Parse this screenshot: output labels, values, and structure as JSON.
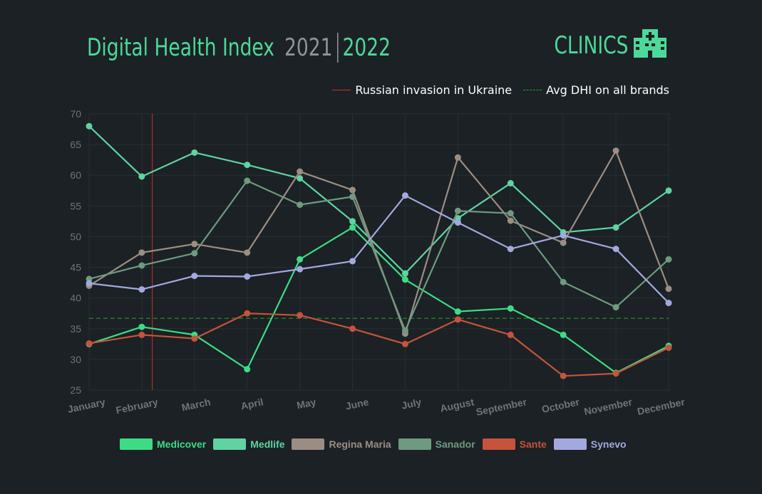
{
  "header": {
    "title": "Digital Health Index",
    "year1": "2021",
    "year2": "2022",
    "category": "CLINICS",
    "icon": "hospital-icon",
    "accent": "#4cd99a"
  },
  "top_legend": [
    {
      "label": "Russian invasion in Ukraine",
      "color": "#c9322c",
      "style": "solid"
    },
    {
      "label": "Avg DHI on all brands",
      "color": "#29a329",
      "style": "dashed"
    }
  ],
  "chart_data": {
    "type": "line",
    "categories": [
      "January",
      "February",
      "March",
      "April",
      "May",
      "June",
      "July",
      "August",
      "September",
      "October",
      "November",
      "December"
    ],
    "ylim": [
      25,
      70
    ],
    "yticks": [
      25,
      30,
      35,
      40,
      45,
      50,
      55,
      60,
      65,
      70
    ],
    "grid": true,
    "legend": "bottom",
    "series": [
      {
        "name": "Medicover",
        "color": "#3ddc84",
        "values": [
          32.5,
          35.3,
          34.0,
          28.4,
          46.3,
          51.5,
          43.0,
          37.8,
          38.3,
          34.0,
          27.8,
          32.2
        ]
      },
      {
        "name": "Medlife",
        "color": "#5fd3a2",
        "values": [
          68.0,
          59.8,
          63.7,
          61.7,
          59.5,
          52.5,
          44.0,
          53.0,
          58.7,
          50.7,
          51.5,
          57.5
        ]
      },
      {
        "name": "Regina Maria",
        "color": "#9c8d83",
        "values": [
          42.0,
          47.4,
          48.8,
          47.4,
          60.6,
          57.6,
          34.2,
          62.9,
          52.6,
          49.0,
          64.0,
          41.5
        ]
      },
      {
        "name": "Sanador",
        "color": "#6e9a80",
        "values": [
          43.1,
          45.3,
          47.3,
          59.1,
          55.2,
          56.5,
          34.7,
          54.2,
          53.8,
          42.6,
          38.5,
          46.3
        ]
      },
      {
        "name": "Sante",
        "color": "#c5533d",
        "values": [
          32.6,
          34.0,
          33.4,
          37.5,
          37.2,
          35.0,
          32.5,
          36.5,
          34.0,
          27.3,
          27.7,
          31.9
        ]
      },
      {
        "name": "Synevo",
        "color": "#a3a8e0",
        "values": [
          42.4,
          41.4,
          43.6,
          43.5,
          44.7,
          46.0,
          56.7,
          52.3,
          48.0,
          50.2,
          48.0,
          39.2
        ]
      }
    ],
    "annotations": {
      "event_line": {
        "category": "February",
        "offset": 0.2,
        "color": "#c9322c"
      },
      "average_line": {
        "value": 36.7,
        "color": "#29a329"
      }
    }
  }
}
